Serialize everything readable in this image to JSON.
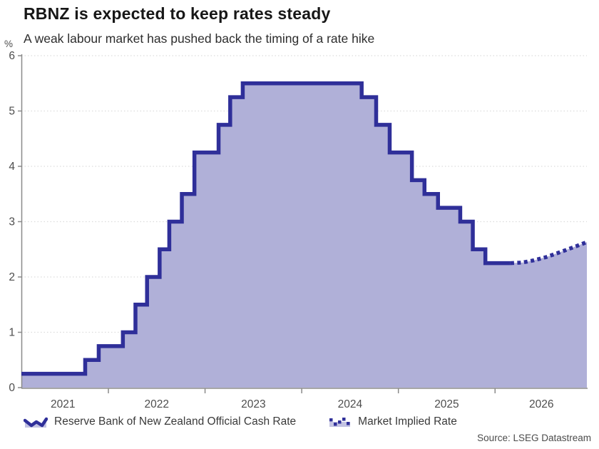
{
  "header": {
    "title": "RBNZ is expected to keep rates steady",
    "subtitle": "A weak labour market has pushed back the timing of a rate hike"
  },
  "legend": {
    "items": [
      {
        "label": "Reserve Bank of New Zealand Official Cash Rate",
        "icon": "solid-area-legend-icon"
      },
      {
        "label": "Market Implied Rate",
        "icon": "dotted-line-legend-icon"
      }
    ]
  },
  "source": "Source: LSEG Datastream",
  "colors": {
    "line": "#2f2f99",
    "fill": "#b0b0d8",
    "legend_fill": "#c3c3e2",
    "grid": "#dcdcdc",
    "axis": "#8a8a8a",
    "tick_text": "#4d4d4d"
  },
  "chart_data": {
    "type": "area",
    "title": "RBNZ is expected to keep rates steady",
    "subtitle": "A weak labour market has pushed back the timing of a rate hike",
    "xlabel": "",
    "ylabel": "%",
    "x_domain": [
      2021.1,
      2026.95
    ],
    "ylim": [
      0,
      6
    ],
    "y_ticks": [
      0,
      1,
      2,
      3,
      4,
      5,
      6
    ],
    "x_boundary_ticks": [
      2022,
      2023,
      2024,
      2025,
      2026
    ],
    "x_labels": [
      {
        "text": "2021",
        "t": 2021.53
      },
      {
        "text": "2022",
        "t": 2022.5
      },
      {
        "text": "2023",
        "t": 2023.5
      },
      {
        "text": "2024",
        "t": 2024.5
      },
      {
        "text": "2025",
        "t": 2025.5
      },
      {
        "text": "2026",
        "t": 2026.48
      }
    ],
    "grid": "dotted-horizontal",
    "legend_position": "bottom",
    "series": [
      {
        "name": "Reserve Bank of New Zealand Official Cash Rate",
        "style": "solid-step-area",
        "points": [
          [
            2021.1,
            0.25,
            "start"
          ],
          [
            2021.76,
            0.5,
            "Oct 2021"
          ],
          [
            2021.9,
            0.75,
            "Nov 2021"
          ],
          [
            2022.15,
            1.0,
            "Feb 2022"
          ],
          [
            2022.28,
            1.5,
            "Apr 2022"
          ],
          [
            2022.4,
            2.0,
            "May 2022"
          ],
          [
            2022.53,
            2.5,
            "Jul 2022"
          ],
          [
            2022.63,
            3.0,
            "Aug 2022"
          ],
          [
            2022.76,
            3.5,
            "Oct 2022"
          ],
          [
            2022.89,
            4.25,
            "Nov 2022"
          ],
          [
            2023.14,
            4.75,
            "Feb 2023"
          ],
          [
            2023.26,
            5.25,
            "Apr 2023"
          ],
          [
            2023.39,
            5.5,
            "May 2023"
          ],
          [
            2024.62,
            5.25,
            "Aug 2024"
          ],
          [
            2024.77,
            4.75,
            "Oct 2024"
          ],
          [
            2024.91,
            4.25,
            "Nov 2024"
          ],
          [
            2025.14,
            3.75,
            "Feb 2025"
          ],
          [
            2025.27,
            3.5,
            "Apr 2025"
          ],
          [
            2025.41,
            3.25,
            "May 2025"
          ],
          [
            2025.64,
            3.0,
            "Aug 2025"
          ],
          [
            2025.77,
            2.5,
            "Oct 2025"
          ],
          [
            2025.9,
            2.25,
            "Nov 2025"
          ]
        ],
        "end_t": 2026.16
      },
      {
        "name": "Market Implied Rate",
        "style": "dotted-line",
        "points": [
          [
            2026.16,
            2.25
          ],
          [
            2026.28,
            2.26
          ],
          [
            2026.4,
            2.3
          ],
          [
            2026.53,
            2.36
          ],
          [
            2026.66,
            2.44
          ],
          [
            2026.8,
            2.53
          ],
          [
            2026.95,
            2.63
          ]
        ]
      }
    ]
  }
}
